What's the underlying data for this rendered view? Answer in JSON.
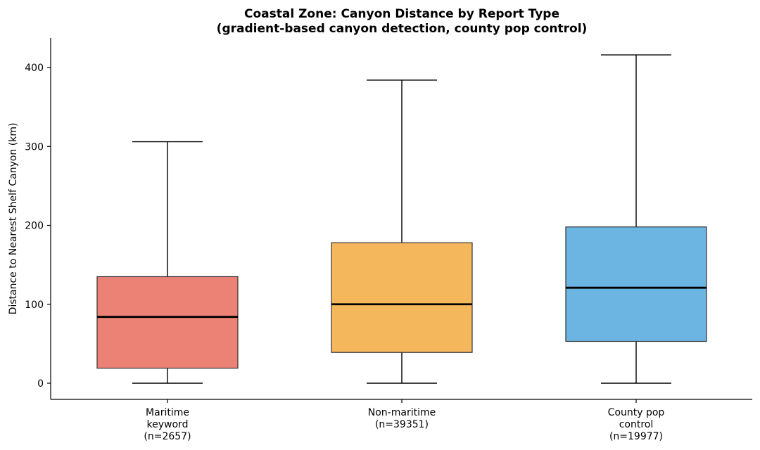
{
  "chart_data": {
    "type": "box",
    "title": [
      "Coastal Zone: Canyon Distance by Report Type",
      "(gradient-based canyon detection, county pop control)"
    ],
    "xlabel": "",
    "ylabel": "Distance to Nearest Shelf Canyon (km)",
    "ylim": [
      -20,
      437
    ],
    "yticks": [
      0,
      100,
      200,
      300,
      400
    ],
    "grid": false,
    "categories": [
      [
        "Maritime",
        "keyword",
        "(n=2657)"
      ],
      [
        "Non-maritime",
        "(n=39351)"
      ],
      [
        "County pop",
        "control",
        "(n=19977)"
      ]
    ],
    "boxes": [
      {
        "whisker_low": 0,
        "q1": 19,
        "median": 84,
        "q3": 135,
        "whisker_high": 306,
        "color": "#EC8276"
      },
      {
        "whisker_low": 0,
        "q1": 39,
        "median": 100,
        "q3": 178,
        "whisker_high": 384,
        "color": "#F4B75B"
      },
      {
        "whisker_low": 0,
        "q1": 53,
        "median": 121,
        "q3": 198,
        "whisker_high": 416,
        "color": "#6CB4E2"
      }
    ]
  }
}
